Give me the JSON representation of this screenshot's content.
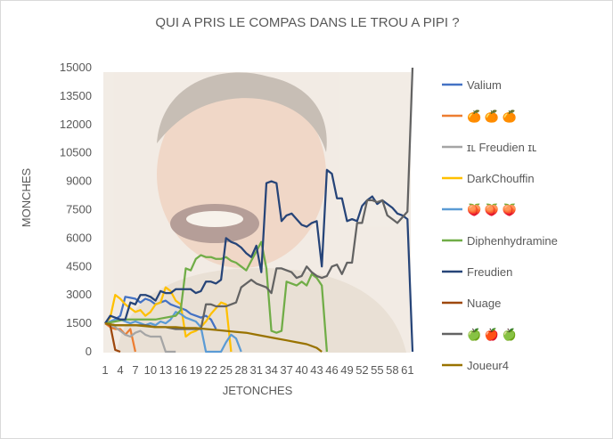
{
  "chart_data": {
    "type": "line",
    "title": "QUI A PRIS LE COMPAS DANS LE TROU A PIPI ?",
    "xlabel": "JETONCHES",
    "ylabel": "MONCHES",
    "ylim": [
      0,
      15000
    ],
    "yticks": [
      "0",
      "1500",
      "3000",
      "4500",
      "6000",
      "7500",
      "9000",
      "10500",
      "12000",
      "13500",
      "15000"
    ],
    "xlim": [
      1,
      62
    ],
    "xticks": [
      "1",
      "4",
      "7",
      "10",
      "13",
      "16",
      "19",
      "22",
      "25",
      "28",
      "31",
      "34",
      "37",
      "40",
      "43",
      "46",
      "49",
      "52",
      "55",
      "58",
      "61"
    ],
    "xtick_label": "1 4 7 10131619222528313437404346495255586‌1",
    "legend_position": "right",
    "grid": false,
    "background_icon": "laughing-man-photo",
    "series": [
      {
        "name": "Valium",
        "color": "#4472c4",
        "x": [
          1,
          2,
          3,
          4,
          5,
          6,
          7,
          8,
          9,
          10,
          11,
          12,
          13,
          14,
          15,
          16,
          17,
          18,
          19,
          20,
          21,
          22,
          23
        ],
        "y": [
          1500,
          1600,
          1700,
          1900,
          2900,
          2850,
          2800,
          2600,
          2800,
          2700,
          2500,
          2600,
          2700,
          2500,
          2400,
          2300,
          2200,
          2000,
          1900,
          1800,
          1900,
          1700,
          1200
        ]
      },
      {
        "name": "🍊 🍊 🍊",
        "color": "#ed7d31",
        "x": [
          1,
          2,
          3,
          4,
          5,
          6,
          7
        ],
        "y": [
          1500,
          1300,
          1200,
          1200,
          900,
          1200,
          0
        ]
      },
      {
        "name": "ɪʟ Freudien ɪʟ",
        "color": "#a5a5a5",
        "x": [
          1,
          2,
          3,
          4,
          5,
          6,
          7,
          8,
          9,
          10,
          11,
          12,
          13,
          14,
          15
        ],
        "y": [
          1500,
          1400,
          1300,
          1100,
          900,
          800,
          1000,
          1100,
          900,
          800,
          800,
          800,
          0,
          0,
          0
        ]
      },
      {
        "name": "DarkChouffin",
        "color": "#ffc000",
        "x": [
          1,
          2,
          3,
          4,
          5,
          6,
          7,
          8,
          9,
          10,
          11,
          12,
          13,
          14,
          15,
          16,
          17,
          18,
          19,
          20,
          21,
          22,
          23,
          24,
          25,
          26
        ],
        "y": [
          1500,
          1800,
          3000,
          2800,
          2500,
          2300,
          2100,
          2200,
          1900,
          2100,
          2500,
          2600,
          3400,
          3200,
          2700,
          2500,
          800,
          1000,
          1100,
          1300,
          1600,
          2000,
          2300,
          2600,
          2500,
          0
        ]
      },
      {
        "name": "🍑 🍑 🍑",
        "color": "#5b9bd5",
        "x": [
          1,
          2,
          3,
          4,
          5,
          6,
          7,
          8,
          9,
          10,
          11,
          12,
          13,
          14,
          15,
          16,
          17,
          18,
          19,
          20,
          21,
          22,
          23,
          24,
          25,
          26,
          27,
          28
        ],
        "y": [
          1500,
          1600,
          1700,
          1700,
          1600,
          1500,
          1600,
          1500,
          1400,
          1500,
          1400,
          1600,
          1500,
          1700,
          2100,
          2000,
          1800,
          1700,
          1600,
          1300,
          0,
          0,
          0,
          0,
          500,
          900,
          700,
          0
        ]
      },
      {
        "name": "Diphenhydramine",
        "color": "#70ad47",
        "x": [
          1,
          3,
          5,
          7,
          9,
          11,
          13,
          15,
          16,
          17,
          18,
          19,
          20,
          21,
          22,
          23,
          24,
          25,
          26,
          27,
          28,
          29,
          30,
          31,
          32,
          33,
          34,
          35,
          36,
          37,
          38,
          39,
          40,
          41,
          42,
          43,
          44,
          45
        ],
        "y": [
          1500,
          1600,
          1700,
          1700,
          1700,
          1700,
          1800,
          1900,
          2200,
          4400,
          4300,
          4900,
          5100,
          5000,
          5000,
          4900,
          4900,
          5000,
          4800,
          4700,
          4500,
          4300,
          4800,
          5300,
          5800,
          4400,
          1100,
          1000,
          1100,
          3700,
          3600,
          3500,
          3700,
          3500,
          4100,
          3900,
          3500,
          0
        ]
      },
      {
        "name": "Freudien",
        "color": "#264478",
        "x": [
          1,
          2,
          3,
          4,
          5,
          6,
          7,
          8,
          9,
          10,
          11,
          12,
          13,
          14,
          15,
          16,
          17,
          18,
          19,
          20,
          21,
          22,
          23,
          24,
          25,
          26,
          27,
          28,
          29,
          30,
          31,
          32,
          33,
          34,
          35,
          36,
          37,
          38,
          39,
          40,
          41,
          42,
          43,
          44,
          45,
          46,
          47,
          48,
          49,
          50,
          51,
          52,
          53,
          54,
          55,
          56,
          57,
          58,
          59,
          60,
          61,
          62
        ],
        "y": [
          1500,
          1900,
          1800,
          1700,
          1700,
          2600,
          2500,
          3000,
          3000,
          2900,
          2700,
          3200,
          3100,
          3100,
          3300,
          3300,
          3300,
          3300,
          3100,
          3200,
          3700,
          3700,
          3600,
          3800,
          6000,
          5800,
          5700,
          5500,
          5200,
          5000,
          5600,
          4200,
          8900,
          9000,
          8900,
          6900,
          7200,
          7300,
          7000,
          6700,
          6600,
          6800,
          6900,
          4500,
          9600,
          9400,
          8100,
          8100,
          6900,
          7000,
          6900,
          7700,
          8000,
          8200,
          7800,
          8000,
          7800,
          7600,
          7300,
          7200,
          7000,
          0
        ]
      },
      {
        "name": "Nuage",
        "color": "#9e480e",
        "x": [
          1,
          2,
          3,
          4
        ],
        "y": [
          1500,
          1400,
          100,
          0
        ]
      },
      {
        "name": "🍏 🍎 🍏",
        "color": "#636363",
        "x": [
          1,
          3,
          5,
          7,
          9,
          11,
          13,
          15,
          17,
          19,
          20,
          21,
          22,
          23,
          24,
          25,
          26,
          27,
          28,
          29,
          30,
          31,
          32,
          33,
          34,
          35,
          36,
          37,
          38,
          39,
          40,
          41,
          42,
          43,
          44,
          45,
          46,
          47,
          48,
          49,
          50,
          51,
          52,
          53,
          54,
          55,
          56,
          57,
          58,
          59,
          60,
          61,
          62
        ],
        "y": [
          1500,
          1400,
          1400,
          1400,
          1400,
          1300,
          1300,
          1200,
          1200,
          1200,
          1200,
          2500,
          2500,
          2400,
          2400,
          2400,
          2500,
          2600,
          3400,
          3600,
          3800,
          3600,
          3500,
          3400,
          3100,
          4400,
          4400,
          4300,
          4200,
          3900,
          4000,
          4500,
          4200,
          4000,
          3900,
          4000,
          4500,
          4600,
          4100,
          4700,
          4700,
          6800,
          6800,
          8000,
          8000,
          7900,
          8000,
          7200,
          7000,
          6800,
          7100,
          7400,
          15000
        ]
      },
      {
        "name": "Joueur4",
        "color": "#997300",
        "x": [
          1,
          3,
          5,
          7,
          9,
          11,
          13,
          15,
          17,
          19,
          21,
          23,
          25,
          27,
          29,
          31,
          33,
          35,
          37,
          39,
          41,
          43,
          44
        ],
        "y": [
          1500,
          1400,
          1400,
          1400,
          1350,
          1300,
          1300,
          1300,
          1250,
          1250,
          1200,
          1150,
          1100,
          1050,
          1000,
          900,
          800,
          700,
          600,
          500,
          400,
          200,
          0
        ]
      }
    ]
  }
}
